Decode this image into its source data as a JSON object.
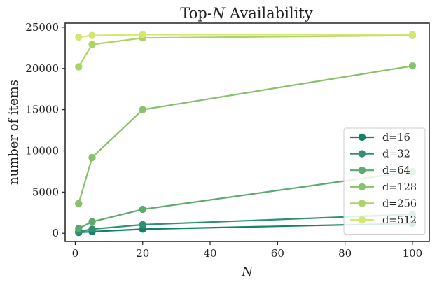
{
  "chart_data": {
    "type": "line",
    "title_prefix": "Top-",
    "title_var": "N",
    "title_suffix": " Availability",
    "xlabel": "N",
    "ylabel": "number of items",
    "xlim": [
      -3,
      105
    ],
    "ylim": [
      -1000,
      25500
    ],
    "xticks": [
      0,
      20,
      40,
      60,
      80,
      100
    ],
    "yticks": [
      0,
      5000,
      10000,
      15000,
      20000,
      25000
    ],
    "x": [
      1,
      5,
      20,
      100
    ],
    "legend_position": "lower-right",
    "series": [
      {
        "name": "d=16",
        "color": "#13826b",
        "values": [
          100,
          200,
          500,
          1200
        ]
      },
      {
        "name": "d=32",
        "color": "#2e9271",
        "values": [
          200,
          500,
          1050,
          2300
        ]
      },
      {
        "name": "d=64",
        "color": "#5ea96e",
        "values": [
          600,
          1400,
          2900,
          7500
        ]
      },
      {
        "name": "d=128",
        "color": "#88c16c",
        "values": [
          3600,
          9200,
          15000,
          20300
        ]
      },
      {
        "name": "d=256",
        "color": "#acd364",
        "values": [
          20200,
          22900,
          23700,
          24000
        ]
      },
      {
        "name": "d=512",
        "color": "#d3e772",
        "values": [
          23800,
          24000,
          24100,
          24100
        ]
      }
    ]
  }
}
